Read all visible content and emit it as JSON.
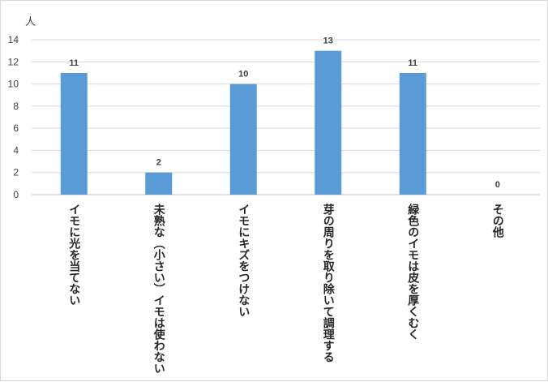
{
  "chart_data": {
    "type": "bar",
    "ylabel": "人",
    "ylim": [
      0,
      14
    ],
    "yticks": [
      0,
      2,
      4,
      6,
      8,
      10,
      12,
      14
    ],
    "grid": true,
    "categories": [
      "イモに光を当てない",
      "未熟な（小さい）イモは使わない",
      "イモにキズをつけない",
      "芽の周りを取り除いて調理する",
      "緑色のイモは皮を厚くむく",
      "その他"
    ],
    "values": [
      11,
      2,
      10,
      13,
      11,
      0
    ],
    "bar_color": "#5b9bd5"
  }
}
